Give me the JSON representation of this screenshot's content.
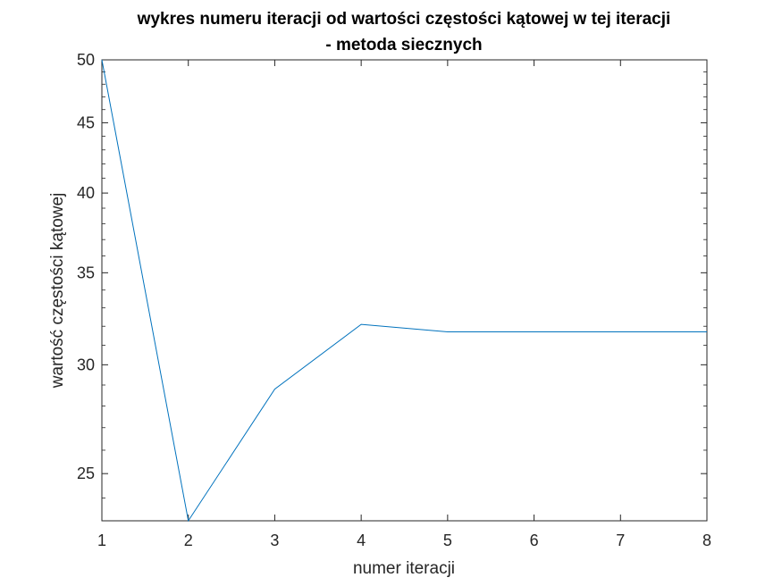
{
  "chart_data": {
    "type": "line",
    "title": "wykres numeru iteracji od wartości częstości kątowej w tej iteracji",
    "subtitle": "- metoda siecznych",
    "xlabel": "numer iteracji",
    "ylabel": "wartość częstości kątowej",
    "x": [
      1,
      2,
      3,
      4,
      5,
      6,
      7,
      8
    ],
    "series": [
      {
        "values": [
          50,
          23.1,
          28.8,
          32.1,
          31.7,
          31.7,
          31.7,
          31.7
        ]
      }
    ],
    "xlim": [
      1,
      8
    ],
    "ylim": [
      23.1,
      50
    ],
    "y_scale": "log",
    "xticks": [
      "1",
      "2",
      "3",
      "4",
      "5",
      "6",
      "7",
      "8"
    ],
    "yticks": [
      "25",
      "30",
      "35",
      "40",
      "45",
      "50"
    ],
    "line_color": "#0072BD",
    "grid": false,
    "box": true
  }
}
